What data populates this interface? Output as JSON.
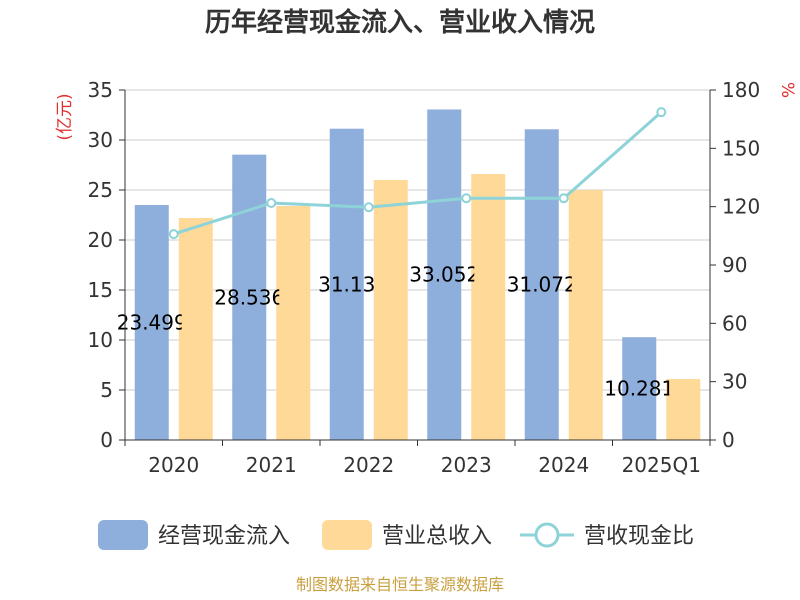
{
  "chart_data": {
    "type": "bar",
    "title": "历年经营现金流入、营业收入情况",
    "categories": [
      "2020",
      "2021",
      "2022",
      "2023",
      "2024",
      "2025Q1"
    ],
    "series": [
      {
        "name": "经营现金流入",
        "type": "bar",
        "axis": "left",
        "color": "#8eaedb",
        "values": [
          23.499,
          28.536,
          31.13,
          33.052,
          31.072,
          10.281
        ]
      },
      {
        "name": "营业总收入",
        "type": "bar",
        "axis": "left",
        "color": "#ffd998",
        "values": [
          22.2,
          23.4,
          26.0,
          26.6,
          25.0,
          6.1
        ]
      },
      {
        "name": "营收现金比",
        "type": "line",
        "axis": "right",
        "color": "#8dd3d8",
        "values": [
          105.9,
          121.9,
          119.7,
          124.3,
          124.3,
          168.6
        ]
      }
    ],
    "data_labels": [
      "23.499",
      "28.536",
      "31.13",
      "33.052",
      "31.072",
      "10.281"
    ],
    "left_axis": {
      "label": "(亿元)",
      "ylim": [
        0,
        35
      ],
      "ticks": [
        "0",
        "5",
        "10",
        "15",
        "20",
        "25",
        "30",
        "35"
      ]
    },
    "right_axis": {
      "label": "%",
      "ylim": [
        0,
        180
      ],
      "ticks": [
        "0",
        "30",
        "60",
        "90",
        "120",
        "150",
        "180"
      ]
    },
    "grid": true,
    "legend": "bottom",
    "source": "制图数据来自恒生聚源数据库"
  }
}
